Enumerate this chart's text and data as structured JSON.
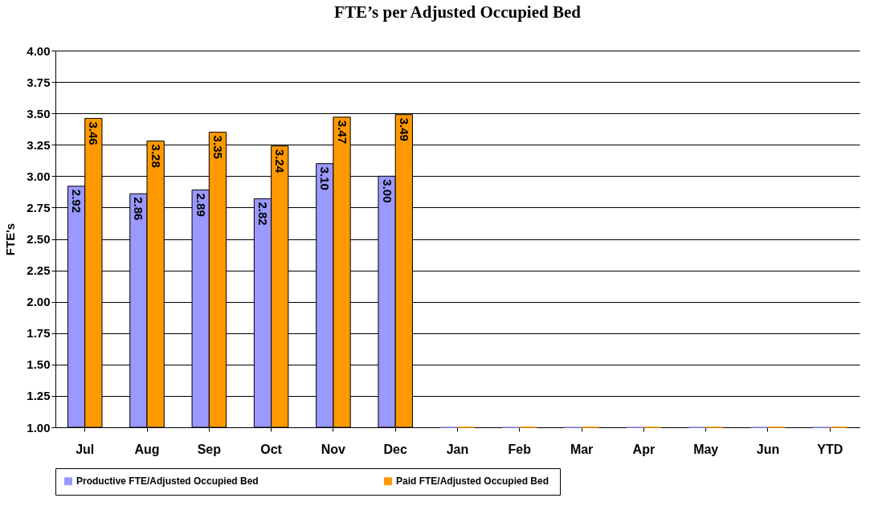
{
  "chart_data": {
    "type": "bar",
    "title": "FTE’s per Adjusted Occupied Bed",
    "ylabel": "FTE's",
    "categories": [
      "Jul",
      "Aug",
      "Sep",
      "Oct",
      "Nov",
      "Dec",
      "Jan",
      "Feb",
      "Mar",
      "Apr",
      "May",
      "Jun",
      "YTD"
    ],
    "series": [
      {
        "name": "Productive FTE/Adjusted  Occupied Bed",
        "color": "#9999ff",
        "values": [
          2.92,
          2.86,
          2.89,
          2.82,
          3.1,
          3.0,
          1.0,
          1.0,
          1.0,
          1.0,
          1.0,
          1.0,
          1.0
        ],
        "value_labels": [
          "2.92",
          "2.86",
          "2.89",
          "2.82",
          "3.10",
          "3.00",
          null,
          null,
          null,
          null,
          null,
          null,
          null
        ]
      },
      {
        "name": "Paid FTE/Adjusted  Occupied Bed",
        "color": "#ff9900",
        "values": [
          3.46,
          3.28,
          3.35,
          3.24,
          3.47,
          3.49,
          1.0,
          1.0,
          1.0,
          1.0,
          1.0,
          1.0,
          1.0
        ],
        "value_labels": [
          "3.46",
          "3.28",
          "3.35",
          "3.24",
          "3.47",
          "3.49",
          null,
          null,
          null,
          null,
          null,
          null,
          null
        ]
      }
    ],
    "ylim": [
      1.0,
      4.0
    ],
    "yticks": [
      {
        "value": 1,
        "label": "1.00"
      },
      {
        "value": 1.25,
        "label": "1.25"
      },
      {
        "value": 1.5,
        "label": "1.50"
      },
      {
        "value": 1.75,
        "label": "1.75"
      },
      {
        "value": 2,
        "label": "2.00"
      },
      {
        "value": 2.25,
        "label": "2.25"
      },
      {
        "value": 2.5,
        "label": "2.50"
      },
      {
        "value": 2.75,
        "label": "2.75"
      },
      {
        "value": 3,
        "label": "3.00"
      },
      {
        "value": 3.25,
        "label": "3.25"
      },
      {
        "value": 3.5,
        "label": "3.50"
      },
      {
        "value": 3.75,
        "label": "3.75"
      },
      {
        "value": 4,
        "label": "4.00"
      }
    ],
    "grid": "y",
    "legend": "bottom"
  }
}
